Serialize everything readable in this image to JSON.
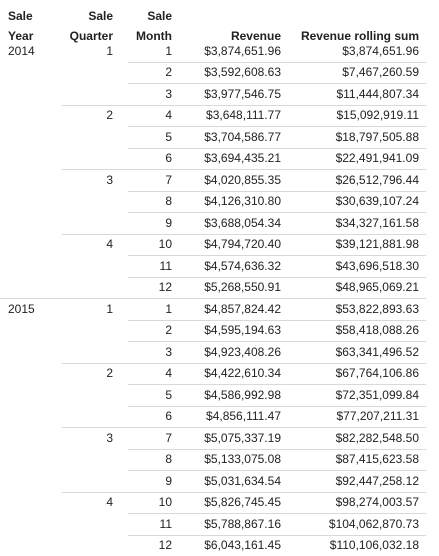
{
  "headers": {
    "year": [
      "Sale",
      "Year"
    ],
    "quarter": [
      "Sale",
      "Quarter"
    ],
    "month": [
      "Sale",
      "Month"
    ],
    "revenue": "Revenue",
    "rolling": "Revenue rolling sum"
  },
  "rows": [
    {
      "year": "2014",
      "quarter": "1",
      "month": "1",
      "revenue": "$3,874,651.96",
      "rolling": "$3,874,651.96"
    },
    {
      "year": "",
      "quarter": "",
      "month": "2",
      "revenue": "$3,592,608.63",
      "rolling": "$7,467,260.59"
    },
    {
      "year": "",
      "quarter": "",
      "month": "3",
      "revenue": "$3,977,546.75",
      "rolling": "$11,444,807.34"
    },
    {
      "year": "",
      "quarter": "2",
      "month": "4",
      "revenue": "$3,648,111.77",
      "rolling": "$15,092,919.11"
    },
    {
      "year": "",
      "quarter": "",
      "month": "5",
      "revenue": "$3,704,586.77",
      "rolling": "$18,797,505.88"
    },
    {
      "year": "",
      "quarter": "",
      "month": "6",
      "revenue": "$3,694,435.21",
      "rolling": "$22,491,941.09"
    },
    {
      "year": "",
      "quarter": "3",
      "month": "7",
      "revenue": "$4,020,855.35",
      "rolling": "$26,512,796.44"
    },
    {
      "year": "",
      "quarter": "",
      "month": "8",
      "revenue": "$4,126,310.80",
      "rolling": "$30,639,107.24"
    },
    {
      "year": "",
      "quarter": "",
      "month": "9",
      "revenue": "$3,688,054.34",
      "rolling": "$34,327,161.58"
    },
    {
      "year": "",
      "quarter": "4",
      "month": "10",
      "revenue": "$4,794,720.40",
      "rolling": "$39,121,881.98"
    },
    {
      "year": "",
      "quarter": "",
      "month": "11",
      "revenue": "$4,574,636.32",
      "rolling": "$43,696,518.30"
    },
    {
      "year": "",
      "quarter": "",
      "month": "12",
      "revenue": "$5,268,550.91",
      "rolling": "$48,965,069.21"
    },
    {
      "year": "2015",
      "quarter": "1",
      "month": "1",
      "revenue": "$4,857,824.42",
      "rolling": "$53,822,893.63"
    },
    {
      "year": "",
      "quarter": "",
      "month": "2",
      "revenue": "$4,595,194.63",
      "rolling": "$58,418,088.26"
    },
    {
      "year": "",
      "quarter": "",
      "month": "3",
      "revenue": "$4,923,408.26",
      "rolling": "$63,341,496.52"
    },
    {
      "year": "",
      "quarter": "2",
      "month": "4",
      "revenue": "$4,422,610.34",
      "rolling": "$67,764,106.86"
    },
    {
      "year": "",
      "quarter": "",
      "month": "5",
      "revenue": "$4,586,992.98",
      "rolling": "$72,351,099.84"
    },
    {
      "year": "",
      "quarter": "",
      "month": "6",
      "revenue": "$4,856,111.47",
      "rolling": "$77,207,211.31"
    },
    {
      "year": "",
      "quarter": "3",
      "month": "7",
      "revenue": "$5,075,337.19",
      "rolling": "$82,282,548.50"
    },
    {
      "year": "",
      "quarter": "",
      "month": "8",
      "revenue": "$5,133,075.08",
      "rolling": "$87,415,623.58"
    },
    {
      "year": "",
      "quarter": "",
      "month": "9",
      "revenue": "$5,031,634.54",
      "rolling": "$92,447,258.12"
    },
    {
      "year": "",
      "quarter": "4",
      "month": "10",
      "revenue": "$5,826,745.45",
      "rolling": "$98,274,003.57"
    },
    {
      "year": "",
      "quarter": "",
      "month": "11",
      "revenue": "$5,788,867.16",
      "rolling": "$104,062,870.73"
    },
    {
      "year": "",
      "quarter": "",
      "month": "12",
      "revenue": "$6,043,161.45",
      "rolling": "$110,106,032.18"
    }
  ]
}
